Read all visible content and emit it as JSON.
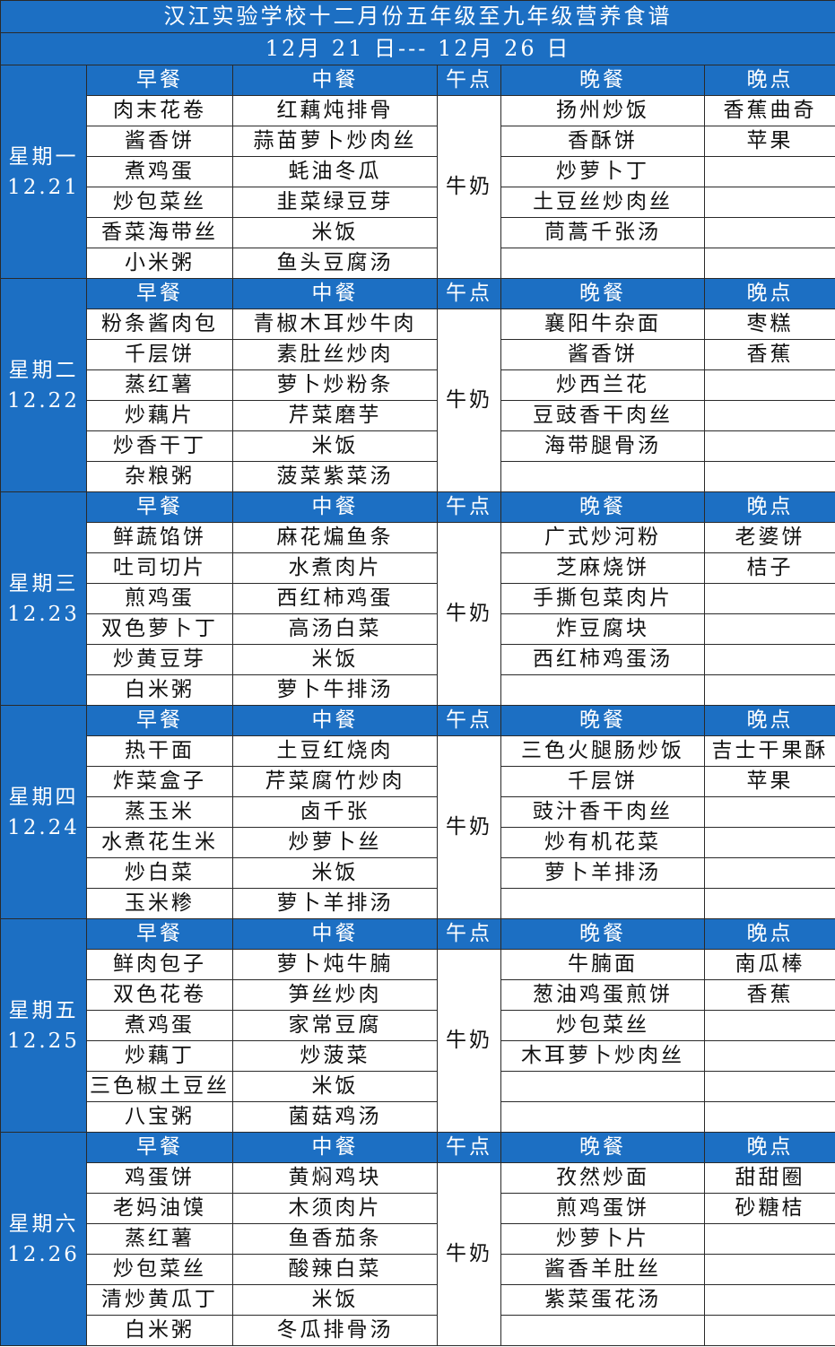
{
  "header": {
    "title": "汉江实验学校十二月份五年级至九年级营养食谱",
    "date_range": "12月 21 日--- 12月 26 日"
  },
  "columns": [
    "早餐",
    "中餐",
    "午点",
    "晚餐",
    "晚点"
  ],
  "days": [
    {
      "name": "星期一",
      "date": "12.21",
      "breakfast": [
        "肉末花卷",
        "酱香饼",
        "煮鸡蛋",
        "炒包菜丝",
        "香菜海带丝",
        "小米粥"
      ],
      "lunch": [
        "红藕炖排骨",
        "蒜苗萝卜炒肉丝",
        "蚝油冬瓜",
        "韭菜绿豆芽",
        "米饭",
        "鱼头豆腐汤"
      ],
      "snack": "牛奶",
      "dinner": [
        "扬州炒饭",
        "香酥饼",
        "炒萝卜丁",
        "土豆丝炒肉丝",
        "茼蒿千张汤"
      ],
      "evening": [
        "香蕉曲奇",
        "苹果"
      ]
    },
    {
      "name": "星期二",
      "date": "12.22",
      "breakfast": [
        "粉条酱肉包",
        "千层饼",
        "蒸红薯",
        "炒藕片",
        "炒香干丁",
        "杂粮粥"
      ],
      "lunch": [
        "青椒木耳炒牛肉",
        "素肚丝炒肉",
        "萝卜炒粉条",
        "芹菜磨芋",
        "米饭",
        "菠菜紫菜汤"
      ],
      "snack": "牛奶",
      "dinner": [
        "襄阳牛杂面",
        "酱香饼",
        "炒西兰花",
        "豆豉香干肉丝",
        "海带腿骨汤"
      ],
      "evening": [
        "枣糕",
        "香蕉"
      ]
    },
    {
      "name": "星期三",
      "date": "12.23",
      "breakfast": [
        "鲜蔬馅饼",
        "吐司切片",
        "煎鸡蛋",
        "双色萝卜丁",
        "炒黄豆芽",
        "白米粥"
      ],
      "lunch": [
        "麻花煸鱼条",
        "水煮肉片",
        "西红柿鸡蛋",
        "高汤白菜",
        "米饭",
        "萝卜牛排汤"
      ],
      "snack": "牛奶",
      "dinner": [
        "广式炒河粉",
        "芝麻烧饼",
        "手撕包菜肉片",
        "炸豆腐块",
        "西红柿鸡蛋汤"
      ],
      "evening": [
        "老婆饼",
        "桔子"
      ]
    },
    {
      "name": "星期四",
      "date": "12.24",
      "breakfast": [
        "热干面",
        "炸菜盒子",
        "蒸玉米",
        "水煮花生米",
        "炒白菜",
        "玉米糁"
      ],
      "lunch": [
        "土豆红烧肉",
        "芹菜腐竹炒肉",
        "卤千张",
        "炒萝卜丝",
        "米饭",
        "萝卜羊排汤"
      ],
      "snack": "牛奶",
      "dinner": [
        "三色火腿肠炒饭",
        "千层饼",
        "豉汁香干肉丝",
        "炒有机花菜",
        "萝卜羊排汤"
      ],
      "evening": [
        "吉士干果酥",
        "苹果"
      ]
    },
    {
      "name": "星期五",
      "date": "12.25",
      "breakfast": [
        "鲜肉包子",
        "双色花卷",
        "煮鸡蛋",
        "炒藕丁",
        "三色椒土豆丝",
        "八宝粥"
      ],
      "lunch": [
        "萝卜炖牛腩",
        "笋丝炒肉",
        "家常豆腐",
        "炒菠菜",
        "米饭",
        "菌菇鸡汤"
      ],
      "snack": "牛奶",
      "dinner": [
        "牛腩面",
        "葱油鸡蛋煎饼",
        "炒包菜丝",
        "木耳萝卜炒肉丝"
      ],
      "evening": [
        "南瓜棒",
        "香蕉"
      ]
    },
    {
      "name": "星期六",
      "date": "12.26",
      "breakfast": [
        "鸡蛋饼",
        "老妈油馍",
        "蒸红薯",
        "炒包菜丝",
        "清炒黄瓜丁",
        "白米粥"
      ],
      "lunch": [
        "黄焖鸡块",
        "木须肉片",
        "鱼香茄条",
        "酸辣白菜",
        "米饭",
        "冬瓜排骨汤"
      ],
      "snack": "牛奶",
      "dinner": [
        "孜然炒面",
        "煎鸡蛋饼",
        "炒萝卜片",
        "酱香羊肚丝",
        "紫菜蛋花汤"
      ],
      "evening": [
        "甜甜圈",
        "砂糖桔"
      ]
    }
  ]
}
